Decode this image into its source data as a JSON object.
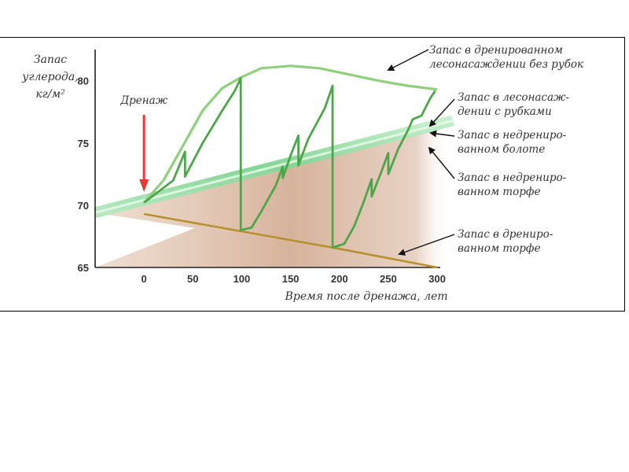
{
  "chart_data": {
    "type": "line",
    "ylabel_lines": [
      "Запас",
      "углерода,",
      "кг/м²"
    ],
    "xlabel": "Время после дренажа, лет",
    "xlim": [
      -50,
      300
    ],
    "ylim": [
      65,
      82
    ],
    "x_ticks": [
      0,
      50,
      100,
      150,
      200,
      250,
      300
    ],
    "y_ticks": [
      65,
      70,
      75,
      80
    ],
    "drainage_marker": {
      "label": "Дренаж",
      "x": 0,
      "color": "#e53935"
    },
    "series": [
      {
        "key": "undrained_mire",
        "color": "#9fdcaa",
        "points": [
          [
            -50,
            69.4
          ],
          [
            0,
            70.4
          ],
          [
            100,
            72.4
          ],
          [
            200,
            74.4
          ],
          [
            300,
            76.4
          ]
        ]
      },
      {
        "key": "drained_peat",
        "color": "#b8912e",
        "points": [
          [
            0,
            69.3
          ],
          [
            100,
            67.9
          ],
          [
            200,
            66.5
          ],
          [
            300,
            65
          ]
        ]
      },
      {
        "key": "drained_no_harvest",
        "color": "#8fd07c",
        "points": [
          [
            0,
            70.2
          ],
          [
            20,
            72
          ],
          [
            40,
            74.8
          ],
          [
            60,
            77.6
          ],
          [
            80,
            79.4
          ],
          [
            100,
            80.3
          ],
          [
            120,
            81
          ],
          [
            150,
            81.2
          ],
          [
            180,
            81
          ],
          [
            210,
            80.5
          ],
          [
            240,
            80
          ],
          [
            270,
            79.6
          ],
          [
            300,
            79.3
          ]
        ]
      },
      {
        "key": "with_harvest",
        "color": "#4ea64a",
        "points": [
          [
            0,
            70.2
          ],
          [
            30,
            72
          ],
          [
            42,
            74.3
          ],
          [
            42,
            72.3
          ],
          [
            60,
            75
          ],
          [
            80,
            77.6
          ],
          [
            93,
            79.2
          ],
          [
            99,
            80.2
          ],
          [
            99,
            68
          ],
          [
            110,
            68.2
          ],
          [
            120,
            69.5
          ],
          [
            135,
            71.6
          ],
          [
            142,
            73.1
          ],
          [
            142,
            72.2
          ],
          [
            150,
            74
          ],
          [
            158,
            75.6
          ],
          [
            158,
            73.2
          ],
          [
            168,
            75.3
          ],
          [
            185,
            77.8
          ],
          [
            193,
            79.6
          ],
          [
            193,
            66.6
          ],
          [
            205,
            66.9
          ],
          [
            215,
            68.3
          ],
          [
            225,
            70.3
          ],
          [
            233,
            72.1
          ],
          [
            233,
            70.7
          ],
          [
            242,
            72.5
          ],
          [
            250,
            74.2
          ],
          [
            250,
            72.5
          ],
          [
            260,
            74.5
          ],
          [
            270,
            76
          ],
          [
            275,
            76.9
          ],
          [
            284,
            77.2
          ],
          [
            293,
            78.6
          ],
          [
            298,
            79.2
          ]
        ]
      }
    ],
    "annotations": [
      {
        "key": "drained_no_harvest",
        "lines": [
          "Запас в дренированном",
          "лесонасаждении без рубок"
        ]
      },
      {
        "key": "with_harvest",
        "lines": [
          "Запас в лесонасаж-",
          "дении с рубками"
        ]
      },
      {
        "key": "undrained_mire",
        "lines": [
          "Запас в недрениро-",
          "ванном болоте"
        ]
      },
      {
        "key": "undrained_peat",
        "lines": [
          "Запас в недрениро-",
          "ванном торфе"
        ]
      },
      {
        "key": "drained_peat",
        "lines": [
          "Запас в дрениро-",
          "ванном  торфе"
        ]
      }
    ]
  }
}
